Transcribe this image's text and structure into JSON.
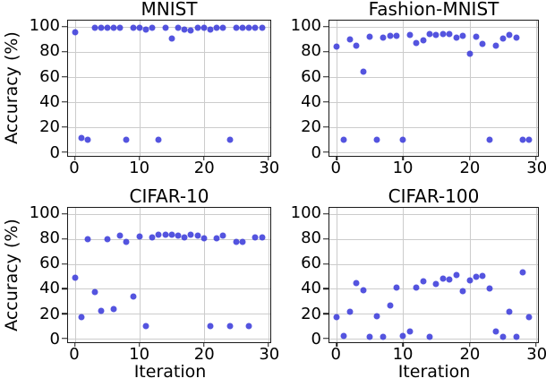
{
  "figure": {
    "ylabel": "Accuracy (%)",
    "xlabel": "Iteration",
    "background": "#ffffff",
    "marker_color": "#3c3cdb",
    "grid_color": "#cccccc",
    "spine_color": "#1a1a1a"
  },
  "chart_data": [
    {
      "type": "scatter",
      "title": "MNIST",
      "xlabel": "Iteration",
      "ylabel": "Accuracy (%)",
      "grid": true,
      "xlim": [
        -1.1,
        30.3
      ],
      "ylim": [
        -3,
        105
      ],
      "xticks": [
        0,
        10,
        20,
        30
      ],
      "yticks": [
        0,
        20,
        40,
        60,
        80,
        100
      ],
      "x": [
        0,
        1,
        2,
        3,
        4,
        5,
        6,
        7,
        8,
        9,
        10,
        11,
        12,
        13,
        14,
        15,
        16,
        17,
        18,
        19,
        20,
        21,
        22,
        23,
        24,
        25,
        26,
        27,
        28,
        29
      ],
      "y": [
        95.5,
        11.5,
        10,
        99.3,
        99.2,
        99.2,
        99.3,
        99.3,
        10,
        99.2,
        99.5,
        97.7,
        99.1,
        10,
        99.3,
        90.5,
        99.1,
        97.7,
        97.3,
        99.2,
        99.5,
        97.8,
        99,
        99.3,
        10,
        99.2,
        99.3,
        99.1,
        99.3,
        99.5
      ]
    },
    {
      "type": "scatter",
      "title": "Fashion-MNIST",
      "xlabel": "Iteration",
      "ylabel": "Accuracy (%)",
      "grid": true,
      "xlim": [
        -1.1,
        30.3
      ],
      "ylim": [
        -3,
        105
      ],
      "xticks": [
        0,
        10,
        20,
        30
      ],
      "yticks": [
        0,
        20,
        40,
        60,
        80,
        100
      ],
      "x": [
        0,
        1,
        2,
        3,
        4,
        5,
        6,
        7,
        8,
        9,
        10,
        11,
        12,
        13,
        14,
        15,
        16,
        17,
        18,
        19,
        20,
        21,
        22,
        23,
        24,
        25,
        26,
        27,
        28,
        29
      ],
      "y": [
        84,
        10,
        90,
        85,
        64.5,
        92,
        10,
        91.5,
        93,
        93,
        10,
        93.5,
        87,
        89.5,
        94,
        93.5,
        94,
        94,
        91.5,
        92.5,
        78.5,
        92,
        86.5,
        10,
        85,
        91,
        93.5,
        91.5,
        10,
        10
      ]
    },
    {
      "type": "scatter",
      "title": "CIFAR-10",
      "xlabel": "Iteration",
      "ylabel": "Accuracy (%)",
      "grid": true,
      "xlim": [
        -1.1,
        30.3
      ],
      "ylim": [
        -3,
        105
      ],
      "xticks": [
        0,
        10,
        20,
        30
      ],
      "yticks": [
        0,
        20,
        40,
        60,
        80,
        100
      ],
      "x": [
        0,
        1,
        2,
        3,
        4,
        5,
        6,
        7,
        8,
        9,
        10,
        11,
        12,
        13,
        14,
        15,
        16,
        17,
        18,
        19,
        20,
        21,
        22,
        23,
        24,
        25,
        26,
        27,
        28,
        29
      ],
      "y": [
        48.5,
        17,
        79.5,
        37,
        22.5,
        80,
        23.5,
        83,
        77.5,
        34,
        82,
        10,
        81,
        83.5,
        83.5,
        83.5,
        83,
        81.5,
        83.5,
        83,
        80.5,
        10,
        80.5,
        82.5,
        10,
        78,
        78,
        10,
        81,
        81.5
      ]
    },
    {
      "type": "scatter",
      "title": "CIFAR-100",
      "xlabel": "Iteration",
      "ylabel": "Accuracy (%)",
      "grid": true,
      "xlim": [
        -1.1,
        30.3
      ],
      "ylim": [
        -3,
        105
      ],
      "xticks": [
        0,
        10,
        20,
        30
      ],
      "yticks": [
        0,
        20,
        40,
        60,
        80,
        100
      ],
      "x": [
        0,
        1,
        2,
        3,
        4,
        5,
        6,
        7,
        8,
        9,
        10,
        11,
        12,
        13,
        14,
        15,
        16,
        17,
        18,
        19,
        20,
        21,
        22,
        23,
        24,
        25,
        26,
        27,
        28,
        29
      ],
      "y": [
        17.5,
        2,
        21.5,
        44.5,
        39,
        1,
        18,
        1,
        26.5,
        41,
        2,
        5.5,
        41,
        46,
        1,
        44,
        48,
        47.5,
        51,
        38,
        47,
        49.5,
        50,
        40,
        5.5,
        1,
        21.5,
        1,
        53.5,
        17.5
      ]
    }
  ]
}
